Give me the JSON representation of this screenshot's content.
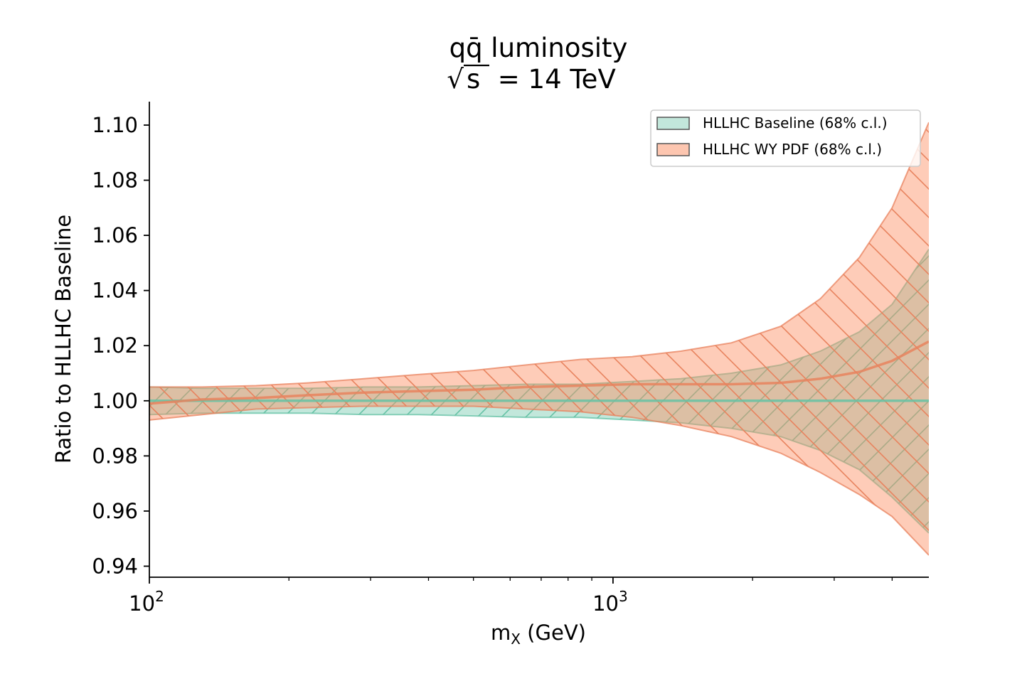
{
  "chart_data": {
    "type": "area",
    "title_line1": "qq̄ luminosity",
    "title_line2_radicand": "s",
    "title_line2_rest": " = 14 TeV",
    "xlabel": "m",
    "xlabel_sub": "X",
    "xlabel_unit": " (GeV)",
    "ylabel": "Ratio to HLLHC Baseline",
    "x_scale": "log",
    "xlim": [
      100,
      4800
    ],
    "ylim": [
      0.936,
      1.1085
    ],
    "x_major_ticks": [
      {
        "value": 100,
        "base": "10",
        "exp": "2"
      },
      {
        "value": 1000,
        "base": "10",
        "exp": "3"
      }
    ],
    "x_minor_ticks": [
      200,
      300,
      400,
      500,
      600,
      700,
      800,
      900,
      2000,
      3000,
      4000
    ],
    "y_ticks": [
      0.94,
      0.96,
      0.98,
      1.0,
      1.02,
      1.04,
      1.06,
      1.08,
      1.1
    ],
    "y_tick_labels": [
      "0.94",
      "0.96",
      "0.98",
      "1.00",
      "1.02",
      "1.04",
      "1.06",
      "1.08",
      "1.10"
    ],
    "grid": false,
    "legend_position": "top-right",
    "series": [
      {
        "name": "HLLHC Baseline (68% c.l.)",
        "fill_color": "#66c2a5",
        "line_color": "#66c2a5",
        "hatch": "/",
        "x": [
          100,
          130,
          170,
          220,
          290,
          380,
          500,
          650,
          850,
          1100,
          1400,
          1800,
          2300,
          2800,
          3400,
          4000,
          4800
        ],
        "central": [
          1.0,
          1.0,
          1.0,
          1.0,
          1.0,
          1.0,
          1.0,
          1.0,
          1.0,
          1.0,
          1.0,
          1.0,
          1.0,
          1.0,
          1.0,
          1.0,
          1.0
        ],
        "upper": [
          1.005,
          1.0045,
          1.0045,
          1.0045,
          1.005,
          1.005,
          1.0055,
          1.006,
          1.006,
          1.007,
          1.008,
          1.01,
          1.013,
          1.018,
          1.025,
          1.035,
          1.055
        ],
        "lower": [
          0.995,
          0.9955,
          0.9955,
          0.9955,
          0.995,
          0.995,
          0.9945,
          0.994,
          0.994,
          0.993,
          0.992,
          0.99,
          0.987,
          0.982,
          0.975,
          0.965,
          0.952
        ]
      },
      {
        "name": "HLLHC WY PDF (68% c.l.)",
        "fill_color": "#fc8d62",
        "line_color": "#e8825e",
        "hatch": "\\",
        "x": [
          100,
          130,
          170,
          220,
          290,
          380,
          500,
          650,
          850,
          1100,
          1400,
          1800,
          2300,
          2800,
          3400,
          4000,
          4800
        ],
        "central": [
          0.999,
          1.0005,
          1.001,
          1.002,
          1.003,
          1.0035,
          1.004,
          1.005,
          1.0055,
          1.006,
          1.006,
          1.006,
          1.0065,
          1.008,
          1.0105,
          1.0145,
          1.0215
        ],
        "upper": [
          1.005,
          1.005,
          1.0055,
          1.0065,
          1.008,
          1.0095,
          1.011,
          1.013,
          1.015,
          1.016,
          1.018,
          1.021,
          1.027,
          1.037,
          1.052,
          1.07,
          1.101
        ],
        "lower": [
          0.993,
          0.995,
          0.997,
          0.9975,
          0.998,
          0.998,
          0.998,
          0.997,
          0.996,
          0.994,
          0.991,
          0.987,
          0.981,
          0.974,
          0.966,
          0.958,
          0.944
        ]
      }
    ]
  }
}
